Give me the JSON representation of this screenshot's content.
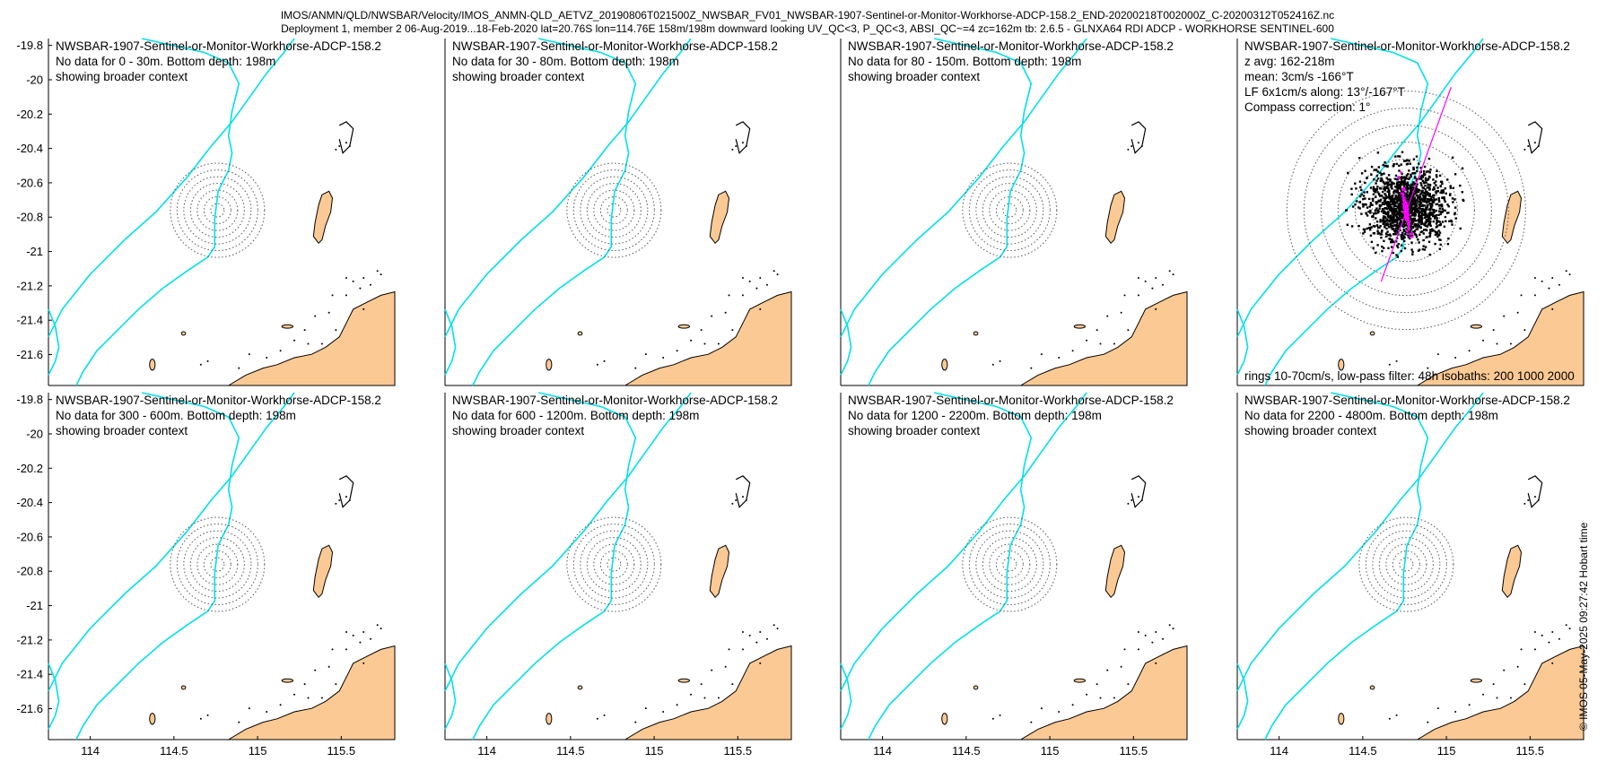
{
  "header": {
    "line1": "IMOS/ANMN/QLD/NWSBAR/Velocity/IMOS_ANMN-QLD_AETVZ_20190806T021500Z_NWSBAR_FV01_NWSBAR-1907-Sentinel-or-Monitor-Workhorse-ADCP-158.2_END-20200218T002000Z_C-20200312T052416Z.nc",
    "line2": "Deployment 1, member 2 06-Aug-2019...18-Feb-2020 lat=20.76S lon=114.76E 158m/198m downward looking UV_QC<3, P_QC<3, ABSI_QC~=4 zc=162m tb: 2.6.5 - GLNXA64 RDI ADCP - WORKHORSE SENTINEL-600"
  },
  "axes": {
    "x_ticks": [
      114,
      114.5,
      115,
      115.5
    ],
    "y_ticks": [
      -19.8,
      -20,
      -20.2,
      -20.4,
      -20.6,
      -20.8,
      -21,
      -21.2,
      -21.4,
      -21.6
    ],
    "xlim": [
      113.75,
      115.82
    ],
    "ylim": [
      -21.78,
      -19.76
    ]
  },
  "instrument_position": {
    "lon": 114.76,
    "lat": -20.76
  },
  "panels": [
    {
      "title": "NWSBAR-1907-Sentinel-or-Monitor-Workhorse-ADCP-158.2",
      "lines": [
        "No data for 0 - 30m. Bottom depth: 198m",
        "showing broader context"
      ]
    },
    {
      "title": "NWSBAR-1907-Sentinel-or-Monitor-Workhorse-ADCP-158.2",
      "lines": [
        "No data for 30 - 80m. Bottom depth: 198m",
        "showing broader context"
      ]
    },
    {
      "title": "NWSBAR-1907-Sentinel-or-Monitor-Workhorse-ADCP-158.2",
      "lines": [
        "No data for 80 - 150m. Bottom depth: 198m",
        "showing broader context"
      ]
    },
    {
      "title": "NWSBAR-1907-Sentinel-or-Monitor-Workhorse-ADCP-158.2",
      "lines": [
        "z avg: 162-218m",
        "mean: 3cm/s -166°T",
        "LF 6x1cm/s along: 13°/-167°T",
        "Compass correction: 1°"
      ],
      "footer": "rings 10-70cm/s, low-pass filter: 48h isobaths: 200 1000 2000",
      "rings": [
        10,
        20,
        30,
        40,
        50,
        60,
        70
      ]
    },
    {
      "title": "NWSBAR-1907-Sentinel-or-Monitor-Workhorse-ADCP-158.2",
      "lines": [
        "No data for 300 - 600m. Bottom depth: 198m",
        "showing broader context"
      ]
    },
    {
      "title": "NWSBAR-1907-Sentinel-or-Monitor-Workhorse-ADCP-158.2",
      "lines": [
        "No data for 600 - 1200m. Bottom depth: 198m",
        "showing broader context"
      ]
    },
    {
      "title": "NWSBAR-1907-Sentinel-or-Monitor-Workhorse-ADCP-158.2",
      "lines": [
        "No data for 1200 - 2200m. Bottom depth: 198m",
        "showing broader context"
      ]
    },
    {
      "title": "NWSBAR-1907-Sentinel-or-Monitor-Workhorse-ADCP-158.2",
      "lines": [
        "No data for 2200 - 4800m. Bottom depth: 198m",
        "showing broader context"
      ]
    }
  ],
  "colors": {
    "isobath": "#00e0e8",
    "land": "#fbc993",
    "scatter": "#000000",
    "lowpass": "#ff00ff",
    "rings": "#555555"
  },
  "copyright": "© IMOS 05-May-2025 09:27:42 Hobart time"
}
